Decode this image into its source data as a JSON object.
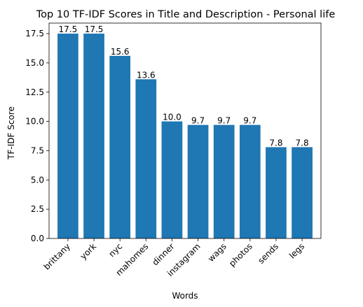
{
  "chart_data": {
    "type": "bar",
    "title": "Top 10 TF-IDF Scores in Title and Description - Personal life",
    "xlabel": "Words",
    "ylabel": "TF-IDF Score",
    "categories": [
      "brittany",
      "york",
      "nyc",
      "mahomes",
      "dinner",
      "instagram",
      "wags",
      "photos",
      "sends",
      "legs"
    ],
    "values": [
      17.5,
      17.5,
      15.6,
      13.6,
      10.0,
      9.7,
      9.7,
      9.7,
      7.8,
      7.8
    ],
    "value_labels": [
      "17.5",
      "17.5",
      "15.6",
      "13.6",
      "10.0",
      "9.7",
      "9.7",
      "9.7",
      "7.8",
      "7.8"
    ],
    "ylim": [
      0,
      18.4
    ],
    "yticks": [
      0.0,
      2.5,
      5.0,
      7.5,
      10.0,
      12.5,
      15.0,
      17.5
    ],
    "ytick_labels": [
      "0.0",
      "2.5",
      "5.0",
      "7.5",
      "10.0",
      "12.5",
      "15.0",
      "17.5"
    ],
    "bar_color": "#1f77b4",
    "grid": false,
    "legend": "none"
  }
}
